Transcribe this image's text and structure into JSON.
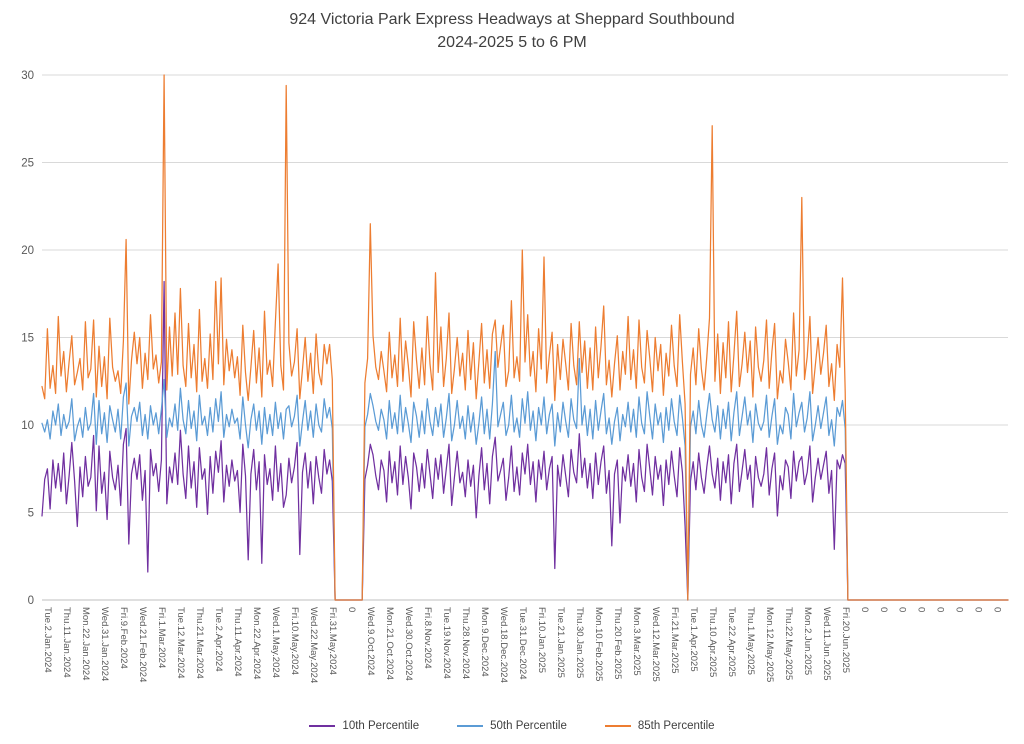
{
  "chart_data": {
    "type": "line",
    "title": "924 Victoria Park Express Headways at Sheppard Southbound",
    "subtitle": "2024-2025 5 to 6 PM",
    "ylabel": "",
    "xlabel": "",
    "ylim": [
      0,
      30
    ],
    "y_ticks": [
      0,
      5,
      10,
      15,
      20,
      25,
      30
    ],
    "grid": "horizontal",
    "legend_position": "bottom",
    "axis_color": "#bfbfbf",
    "grid_color": "#d9d9d9",
    "text_color": "#595959",
    "x_tick_interval": 7,
    "x_tick_labels": [
      "Tue.2.Jan.2024",
      "Thu.11.Jan.2024",
      "Mon.22.Jan.2024",
      "Wed.31.Jan.2024",
      "Fri.9.Feb.2024",
      "Wed.21.Feb.2024",
      "Fri.1.Mar.2024",
      "Tue.12.Mar.2024",
      "Thu.21.Mar.2024",
      "Tue.2.Apr.2024",
      "Thu.11.Apr.2024",
      "Mon.22.Apr.2024",
      "Wed.1.May.2024",
      "Fri.10.May.2024",
      "Wed.22.May.2024",
      "Fri.31.May.2024",
      "0",
      "Wed.9.Oct.2024",
      "Mon.21.Oct.2024",
      "Wed.30.Oct.2024",
      "Fri.8.Nov.2024",
      "Tue.19.Nov.2024",
      "Thu.28.Nov.2024",
      "Mon.9.Dec.2024",
      "Wed.18.Dec.2024",
      "Tue.31.Dec.2024",
      "Fri.10.Jan.2025",
      "Tue.21.Jan.2025",
      "Thu.30.Jan.2025",
      "Mon.10.Feb.2025",
      "Thu.20.Feb.2025",
      "Mon.3.Mar.2025",
      "Wed.12.Mar.2025",
      "Fri.21.Mar.2025",
      "Tue.1.Apr.2025",
      "Thu.10.Apr.2025",
      "Tue.22.Apr.2025",
      "Thu.1.May.2025",
      "Mon.12.May.2025",
      "Thu.22.May.2025",
      "Mon.2.Jun.2025",
      "Wed.11.Jun.2025",
      "Fri.20.Jun.2025",
      "0",
      "0",
      "0",
      "0",
      "0",
      "0",
      "0",
      "0"
    ],
    "series": [
      {
        "name": "10th Percentile",
        "color": "#7030a0",
        "values": [
          4.8,
          6.9,
          7.5,
          5.2,
          8.0,
          6.4,
          7.8,
          6.2,
          8.4,
          5.5,
          7.1,
          9.0,
          6.8,
          4.2,
          7.6,
          5.9,
          8.2,
          6.5,
          7.0,
          9.4,
          5.1,
          8.8,
          6.1,
          7.3,
          4.6,
          8.5,
          7.0,
          6.3,
          7.7,
          5.4,
          8.9,
          9.8,
          3.2,
          7.2,
          8.1,
          6.9,
          8.3,
          5.7,
          7.4,
          1.6,
          8.6,
          7.1,
          7.8,
          6.2,
          8.0,
          18.2,
          5.5,
          7.6,
          6.7,
          8.4,
          6.6,
          9.7,
          7.2,
          5.8,
          8.8,
          6.4,
          7.9,
          5.3,
          8.7,
          6.9,
          7.5,
          4.9,
          8.2,
          6.1,
          8.5,
          7.3,
          9.1,
          5.6,
          7.7,
          6.5,
          8.0,
          6.8,
          7.4,
          5.0,
          8.9,
          7.1,
          2.3,
          7.2,
          8.6,
          6.3,
          7.9,
          2.1,
          8.3,
          6.6,
          7.5,
          5.7,
          8.8,
          6.2,
          7.8,
          5.3,
          6.0,
          8.1,
          6.7,
          7.6,
          9.0,
          2.6,
          7.3,
          8.4,
          6.4,
          7.9,
          5.5,
          8.2,
          7.0,
          6.1,
          8.6,
          7.2,
          8.0,
          6.8,
          0,
          0,
          0,
          0,
          0,
          0,
          0,
          0,
          0,
          0,
          0,
          6.9,
          7.7,
          8.9,
          8.3,
          7.1,
          6.3,
          8.0,
          7.4,
          5.6,
          8.5,
          6.7,
          7.9,
          6.0,
          8.8,
          6.6,
          8.2,
          7.0,
          5.2,
          8.4,
          7.6,
          6.2,
          7.8,
          6.4,
          8.6,
          7.2,
          5.8,
          8.1,
          6.9,
          8.3,
          6.1,
          7.5,
          8.9,
          5.4,
          7.0,
          8.5,
          6.7,
          7.3,
          5.9,
          8.0,
          6.5,
          7.7,
          4.7,
          7.1,
          8.7,
          6.3,
          7.8,
          5.5,
          8.2,
          9.3,
          6.8,
          7.4,
          8.1,
          5.7,
          7.0,
          8.8,
          6.2,
          7.6,
          6.0,
          8.4,
          7.2,
          8.9,
          6.6,
          7.9,
          5.6,
          8.0,
          6.9,
          8.5,
          6.3,
          7.5,
          8.2,
          1.8,
          7.7,
          6.5,
          8.3,
          7.1,
          5.9,
          8.6,
          7.3,
          6.7,
          9.5,
          7.0,
          8.1,
          6.4,
          7.8,
          5.8,
          8.4,
          6.6,
          7.9,
          8.8,
          6.1,
          7.4,
          3.1,
          7.2,
          8.0,
          4.4,
          7.6,
          6.8,
          8.3,
          6.5,
          7.8,
          5.6,
          8.6,
          7.0,
          6.2,
          8.9,
          7.5,
          6.0,
          8.2,
          6.9,
          7.7,
          5.4,
          8.0,
          6.6,
          8.5,
          7.1,
          5.9,
          8.7,
          7.3,
          4.2,
          0,
          6.8,
          7.9,
          6.3,
          8.4,
          7.0,
          6.1,
          7.6,
          8.8,
          7.2,
          6.4,
          8.1,
          5.7,
          7.9,
          6.7,
          8.3,
          5.5,
          7.8,
          8.9,
          6.2,
          7.4,
          8.6,
          6.9,
          7.7,
          5.3,
          8.2,
          7.0,
          6.5,
          7.2,
          8.7,
          6.0,
          7.5,
          8.4,
          4.8,
          7.1,
          6.3,
          8.0,
          7.6,
          5.8,
          8.5,
          6.8,
          7.9,
          8.2,
          6.6,
          7.3,
          8.8,
          5.6,
          7.0,
          8.1,
          6.9,
          7.7,
          8.5,
          6.1,
          7.4,
          2.9,
          8.0,
          7.5,
          8.3,
          7.8,
          0,
          0,
          0,
          0,
          0,
          0,
          0,
          0,
          0,
          0,
          0,
          0,
          0,
          0,
          0,
          0,
          0,
          0,
          0,
          0,
          0,
          0,
          0,
          0,
          0,
          0,
          0,
          0,
          0,
          0,
          0,
          0,
          0,
          0,
          0,
          0,
          0,
          0,
          0,
          0,
          0,
          0,
          0,
          0,
          0,
          0,
          0,
          0,
          0,
          0,
          0,
          0,
          0,
          0,
          0,
          0,
          0,
          0,
          0,
          0
        ]
      },
      {
        "name": "50th Percentile",
        "color": "#5b9bd5",
        "values": [
          10.1,
          9.6,
          10.3,
          9.2,
          10.8,
          10.0,
          11.2,
          9.4,
          10.6,
          9.8,
          10.2,
          11.5,
          9.1,
          9.9,
          10.4,
          9.3,
          11.0,
          9.7,
          10.1,
          11.8,
          8.9,
          11.4,
          9.5,
          10.7,
          9.0,
          11.1,
          10.3,
          9.6,
          10.9,
          9.2,
          11.6,
          12.4,
          8.8,
          10.5,
          11.0,
          10.2,
          11.3,
          9.4,
          10.6,
          9.2,
          11.1,
          10.0,
          10.7,
          9.5,
          10.9,
          12.6,
          9.3,
          10.4,
          9.9,
          11.2,
          9.7,
          12.1,
          10.3,
          9.5,
          11.4,
          9.8,
          10.8,
          9.1,
          11.7,
          10.0,
          10.5,
          9.4,
          11.0,
          9.6,
          11.5,
          10.2,
          11.9,
          9.3,
          10.6,
          9.9,
          10.9,
          10.1,
          10.4,
          9.2,
          11.6,
          10.0,
          8.7,
          10.3,
          11.2,
          9.7,
          10.8,
          8.9,
          11.0,
          9.5,
          10.6,
          9.4,
          11.3,
          9.8,
          10.7,
          9.2,
          10.9,
          11.1,
          9.9,
          10.5,
          11.7,
          8.8,
          10.2,
          11.4,
          9.7,
          10.8,
          9.3,
          11.2,
          10.0,
          9.6,
          11.5,
          10.4,
          11.0,
          9.8,
          0,
          0,
          0,
          0,
          0,
          0,
          0,
          0,
          0,
          0,
          0,
          9.9,
          10.6,
          11.8,
          11.1,
          10.2,
          9.7,
          10.9,
          10.3,
          9.2,
          11.4,
          9.8,
          10.7,
          9.5,
          11.7,
          9.6,
          11.0,
          10.1,
          9.0,
          11.3,
          10.5,
          9.3,
          10.8,
          9.5,
          11.5,
          10.2,
          9.4,
          11.0,
          9.9,
          11.2,
          9.3,
          10.4,
          11.8,
          9.1,
          10.0,
          11.4,
          9.8,
          10.5,
          9.2,
          11.1,
          9.6,
          10.7,
          8.9,
          10.1,
          11.6,
          9.5,
          10.9,
          9.2,
          11.2,
          14.2,
          9.9,
          10.6,
          11.3,
          9.4,
          10.0,
          11.7,
          9.6,
          10.4,
          9.3,
          11.5,
          10.1,
          11.9,
          9.7,
          10.8,
          9.1,
          11.0,
          10.0,
          11.6,
          9.5,
          10.6,
          11.2,
          8.8,
          10.7,
          9.6,
          11.3,
          10.2,
          9.3,
          11.5,
          10.3,
          9.8,
          13.8,
          10.0,
          11.1,
          9.4,
          10.9,
          9.2,
          11.4,
          9.7,
          10.8,
          11.8,
          9.5,
          10.4,
          8.9,
          10.2,
          11.0,
          9.1,
          10.6,
          9.9,
          11.3,
          9.6,
          10.9,
          9.3,
          11.6,
          10.1,
          9.5,
          11.9,
          10.5,
          9.2,
          11.2,
          10.0,
          10.7,
          9.0,
          11.0,
          9.7,
          11.5,
          10.2,
          9.4,
          11.7,
          10.4,
          8.8,
          0,
          9.9,
          10.8,
          9.5,
          11.4,
          10.0,
          9.3,
          10.6,
          11.8,
          10.3,
          9.6,
          11.1,
          9.2,
          10.9,
          9.8,
          11.3,
          9.1,
          10.7,
          11.9,
          9.4,
          10.5,
          11.6,
          10.0,
          10.8,
          9.0,
          11.2,
          10.1,
          9.7,
          10.2,
          11.7,
          9.3,
          10.5,
          11.5,
          8.9,
          10.0,
          9.5,
          11.0,
          10.6,
          9.2,
          11.8,
          9.9,
          10.7,
          11.3,
          9.6,
          10.4,
          11.9,
          9.1,
          10.0,
          11.1,
          9.8,
          10.7,
          11.6,
          9.4,
          10.3,
          8.8,
          11.0,
          10.5,
          11.4,
          9.8,
          0,
          0,
          0,
          0,
          0,
          0,
          0,
          0,
          0,
          0,
          0,
          0,
          0,
          0,
          0,
          0,
          0,
          0,
          0,
          0,
          0,
          0,
          0,
          0,
          0,
          0,
          0,
          0,
          0,
          0,
          0,
          0,
          0,
          0,
          0,
          0,
          0,
          0,
          0,
          0,
          0,
          0,
          0,
          0,
          0,
          0,
          0,
          0,
          0,
          0,
          0,
          0,
          0,
          0,
          0,
          0,
          0,
          0,
          0,
          0
        ]
      },
      {
        "name": "85th Percentile",
        "color": "#ed7d31",
        "values": [
          12.2,
          11.5,
          15.5,
          12.1,
          13.4,
          11.8,
          16.2,
          12.8,
          14.2,
          11.9,
          13.6,
          15.1,
          12.3,
          13.0,
          13.8,
          12.0,
          15.9,
          12.7,
          13.2,
          16.0,
          11.6,
          14.5,
          12.2,
          13.9,
          11.5,
          16.1,
          13.3,
          12.5,
          13.1,
          11.8,
          14.8,
          20.6,
          11.2,
          13.7,
          15.3,
          13.5,
          15.0,
          12.1,
          14.1,
          12.6,
          16.3,
          13.2,
          14.0,
          12.4,
          13.6,
          30.0,
          12.0,
          15.6,
          12.8,
          16.4,
          12.9,
          17.8,
          13.4,
          12.2,
          15.8,
          12.7,
          14.6,
          11.9,
          16.6,
          12.5,
          13.8,
          12.1,
          15.2,
          12.6,
          18.2,
          13.5,
          18.4,
          12.3,
          14.9,
          13.1,
          14.3,
          12.7,
          13.9,
          11.7,
          15.7,
          13.0,
          11.4,
          13.3,
          15.4,
          12.4,
          14.4,
          11.6,
          16.5,
          12.9,
          13.7,
          12.2,
          15.9,
          19.2,
          13.4,
          12.0,
          29.4,
          14.7,
          12.8,
          13.6,
          15.5,
          11.5,
          13.2,
          15.0,
          12.5,
          14.1,
          11.8,
          15.2,
          13.0,
          12.3,
          14.6,
          13.5,
          14.6,
          12.6,
          0,
          0,
          0,
          0,
          0,
          0,
          0,
          0,
          0,
          0,
          0,
          12.4,
          13.8,
          21.5,
          15.1,
          13.3,
          12.6,
          14.2,
          13.1,
          11.9,
          15.3,
          12.7,
          14.0,
          12.2,
          16.1,
          12.5,
          14.8,
          13.4,
          11.6,
          15.9,
          13.7,
          12.1,
          14.4,
          12.3,
          16.2,
          13.5,
          12.0,
          18.7,
          13.0,
          15.6,
          12.2,
          13.8,
          16.4,
          11.8,
          13.2,
          15.0,
          12.8,
          14.1,
          12.0,
          15.4,
          12.6,
          14.7,
          11.5,
          13.6,
          15.8,
          12.4,
          14.3,
          12.1,
          15.2,
          16.0,
          13.3,
          14.5,
          15.7,
          12.2,
          13.1,
          17.1,
          12.7,
          13.9,
          12.5,
          20.0,
          13.6,
          16.3,
          12.8,
          14.2,
          11.9,
          15.5,
          13.2,
          19.6,
          12.4,
          14.0,
          15.3,
          11.4,
          14.6,
          12.6,
          14.9,
          13.5,
          12.0,
          15.8,
          13.4,
          12.3,
          15.9,
          13.0,
          14.8,
          12.1,
          14.4,
          12.0,
          15.6,
          12.7,
          14.5,
          16.8,
          12.3,
          13.7,
          11.6,
          13.5,
          15.1,
          12.0,
          14.2,
          12.9,
          16.2,
          12.6,
          14.3,
          12.1,
          16.0,
          13.3,
          12.4,
          15.4,
          13.8,
          11.9,
          15.0,
          13.1,
          14.6,
          11.7,
          14.1,
          12.8,
          15.7,
          13.4,
          12.2,
          16.3,
          13.6,
          11.2,
          0,
          12.9,
          14.4,
          12.3,
          15.5,
          13.2,
          12.0,
          13.9,
          16.1,
          27.1,
          12.5,
          15.2,
          11.8,
          14.7,
          12.7,
          15.9,
          11.9,
          14.0,
          16.5,
          12.2,
          13.5,
          15.3,
          13.0,
          14.8,
          11.6,
          15.6,
          13.3,
          12.5,
          13.7,
          16.0,
          12.1,
          14.2,
          15.8,
          11.5,
          13.1,
          12.4,
          14.9,
          13.6,
          12.0,
          16.4,
          12.8,
          14.3,
          23.0,
          12.6,
          13.9,
          16.2,
          11.8,
          13.4,
          15.0,
          12.9,
          14.1,
          15.7,
          12.2,
          13.5,
          11.4,
          14.6,
          13.3,
          18.4,
          11.9,
          0,
          0,
          0,
          0,
          0,
          0,
          0,
          0,
          0,
          0,
          0,
          0,
          0,
          0,
          0,
          0,
          0,
          0,
          0,
          0,
          0,
          0,
          0,
          0,
          0,
          0,
          0,
          0,
          0,
          0,
          0,
          0,
          0,
          0,
          0,
          0,
          0,
          0,
          0,
          0,
          0,
          0,
          0,
          0,
          0,
          0,
          0,
          0,
          0,
          0,
          0,
          0,
          0,
          0,
          0,
          0,
          0,
          0,
          0,
          0
        ]
      }
    ]
  }
}
